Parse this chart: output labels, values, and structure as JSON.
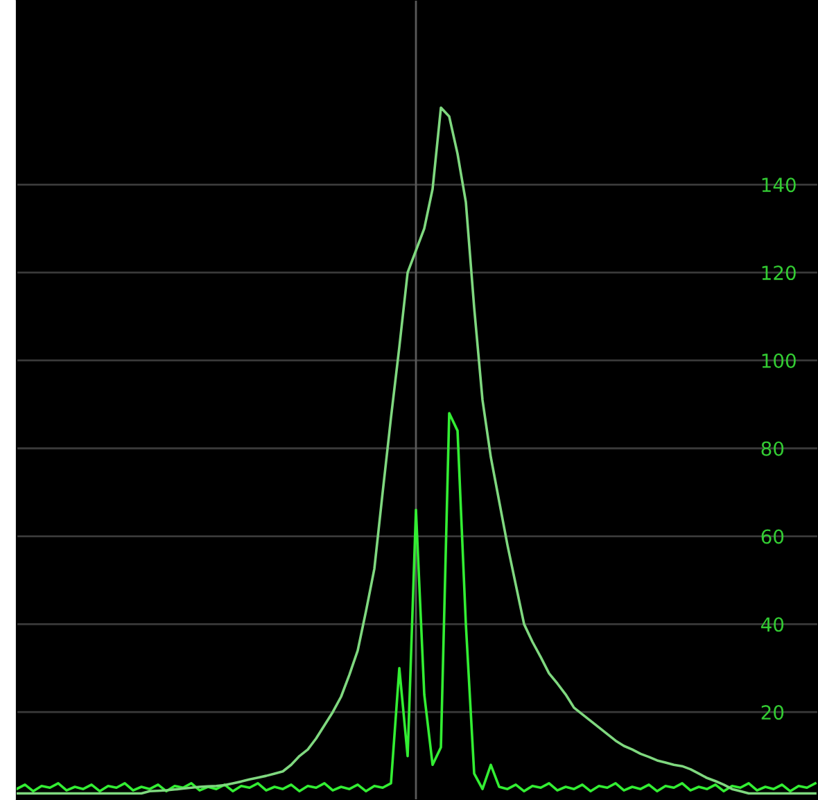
{
  "chart_data": {
    "type": "line",
    "categories": [
      null,
      null,
      null,
      null,
      null,
      null,
      null,
      null,
      null,
      null,
      null,
      null,
      null,
      null,
      null,
      null,
      null,
      null,
      null,
      null,
      null,
      null,
      null,
      null,
      null,
      null,
      null,
      null,
      null,
      null,
      null,
      null,
      null,
      null,
      null,
      null,
      null,
      null,
      null,
      null,
      null,
      null,
      null,
      null,
      null,
      null,
      null,
      null,
      null,
      null,
      null,
      null,
      null,
      null,
      null,
      null,
      null,
      null,
      null,
      null,
      null,
      null,
      null,
      null,
      null,
      null,
      null,
      null,
      null,
      null,
      null,
      null,
      null,
      null,
      null,
      null,
      null,
      null,
      null,
      null,
      null,
      null,
      null,
      null,
      null,
      null,
      null,
      null,
      null,
      null,
      null,
      null,
      null,
      null,
      null,
      null,
      null
    ],
    "series": [
      {
        "color": "#33ee33",
        "values": [
          2.5,
          3.5,
          2,
          3.2,
          2.8,
          3.8,
          2.2,
          3,
          2.5,
          3.5,
          2,
          3.2,
          2.8,
          3.8,
          2.2,
          3,
          2.5,
          3.5,
          2,
          3.2,
          2.8,
          3.8,
          2.2,
          3,
          2.5,
          3.5,
          2,
          3.2,
          2.8,
          3.8,
          2.2,
          3,
          2.5,
          3.5,
          2,
          3.2,
          2.8,
          3.8,
          2.2,
          3,
          2.5,
          3.5,
          2,
          3.2,
          2.8,
          3.8,
          30,
          10,
          66,
          24,
          8,
          12,
          88,
          84,
          40,
          6,
          2.5,
          8,
          3,
          2.5,
          3.5,
          2,
          3.2,
          2.8,
          3.8,
          2.2,
          3,
          2.5,
          3.5,
          2,
          3.2,
          2.8,
          3.8,
          2.2,
          3,
          2.5,
          3.5,
          2,
          3.2,
          2.8,
          3.8,
          2.2,
          3,
          2.5,
          3.5,
          2,
          3.2,
          2.8,
          3.8,
          2.2,
          3,
          2.5,
          3.5,
          2,
          3.2,
          2.8,
          3.8
        ]
      },
      {
        "color": "#7fd87f",
        "values": [
          1.5,
          1.5,
          1.5,
          1.5,
          1.5,
          1.5,
          1.5,
          1.5,
          1.5,
          1.5,
          1.5,
          1.5,
          1.5,
          1.5,
          1.5,
          1.5,
          2.0,
          2.1,
          2.2,
          2.4,
          2.6,
          2.8,
          3.0,
          3.1,
          3.2,
          3.4,
          3.8,
          4.2,
          4.7,
          5.1,
          5.5,
          6.0,
          6.5,
          8,
          10,
          11.5,
          14,
          17,
          20,
          23.5,
          28.5,
          34,
          43,
          52.6,
          70,
          87,
          103,
          120,
          125,
          130,
          139,
          157.5,
          155.5,
          147,
          136,
          112,
          91,
          78,
          68,
          58,
          49,
          40,
          36,
          32.5,
          28.8,
          26.5,
          24,
          21,
          19.5,
          18,
          16.5,
          15,
          13.5,
          12.3,
          11.5,
          10.5,
          9.8,
          9,
          8.5,
          8,
          7.7,
          7,
          6,
          5,
          4.3,
          3.5,
          2.5,
          2,
          1.5,
          1.5,
          1.5,
          1.5,
          1.5,
          1.5,
          1.5,
          1.5,
          1.5
        ]
      }
    ],
    "ylim": [
      0,
      182
    ],
    "yticks": [
      20,
      40,
      60,
      80,
      100,
      120,
      140
    ],
    "grid": "y",
    "tick_labels": "y"
  }
}
